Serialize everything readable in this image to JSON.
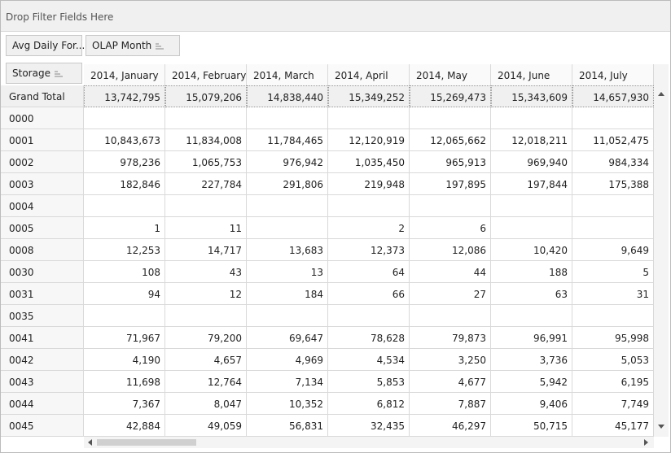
{
  "filter_area": {
    "text": "Drop Filter Fields Here"
  },
  "data_fields": [
    "Avg Daily For...",
    "OLAP Month"
  ],
  "row_field": "Storage",
  "grid": {
    "columns": [
      "2014, January",
      "2014, February",
      "2014, March",
      "2014, April",
      "2014, May",
      "2014, June",
      "2014, July"
    ],
    "rows": [
      {
        "label": "Grand Total",
        "cells": [
          "13,742,795",
          "15,079,206",
          "14,838,440",
          "15,349,252",
          "15,269,473",
          "15,343,609",
          "14,657,930"
        ]
      },
      {
        "label": "0000",
        "cells": [
          null,
          null,
          null,
          null,
          null,
          null,
          null
        ]
      },
      {
        "label": "0001",
        "cells": [
          "10,843,673",
          "11,834,008",
          "11,784,465",
          "12,120,919",
          "12,065,662",
          "12,018,211",
          "11,052,475"
        ]
      },
      {
        "label": "0002",
        "cells": [
          "978,236",
          "1,065,753",
          "976,942",
          "1,035,450",
          "965,913",
          "969,940",
          "984,334"
        ]
      },
      {
        "label": "0003",
        "cells": [
          "182,846",
          "227,784",
          "291,806",
          "219,948",
          "197,895",
          "197,844",
          "175,388"
        ]
      },
      {
        "label": "0004",
        "cells": [
          null,
          null,
          null,
          null,
          null,
          null,
          null
        ]
      },
      {
        "label": "0005",
        "cells": [
          "1",
          "11",
          null,
          "2",
          "6",
          null,
          null
        ]
      },
      {
        "label": "0008",
        "cells": [
          "12,253",
          "14,717",
          "13,683",
          "12,373",
          "12,086",
          "10,420",
          "9,649"
        ]
      },
      {
        "label": "0030",
        "cells": [
          "108",
          "43",
          "13",
          "64",
          "44",
          "188",
          "5"
        ]
      },
      {
        "label": "0031",
        "cells": [
          "94",
          "12",
          "184",
          "66",
          "27",
          "63",
          "31"
        ]
      },
      {
        "label": "0035",
        "cells": [
          null,
          null,
          null,
          null,
          null,
          null,
          null
        ]
      },
      {
        "label": "0041",
        "cells": [
          "71,967",
          "79,200",
          "69,647",
          "78,628",
          "79,873",
          "96,991",
          "95,998"
        ]
      },
      {
        "label": "0042",
        "cells": [
          "4,190",
          "4,657",
          "4,969",
          "4,534",
          "3,250",
          "3,736",
          "5,053"
        ]
      },
      {
        "label": "0043",
        "cells": [
          "11,698",
          "12,764",
          "7,134",
          "5,853",
          "4,677",
          "5,942",
          "6,195"
        ]
      },
      {
        "label": "0044",
        "cells": [
          "7,367",
          "8,047",
          "10,352",
          "6,812",
          "7,887",
          "9,406",
          "7,749"
        ]
      },
      {
        "label": "0045",
        "cells": [
          "42,884",
          "49,059",
          "56,831",
          "32,435",
          "46,297",
          "50,715",
          "45,177"
        ]
      }
    ]
  }
}
